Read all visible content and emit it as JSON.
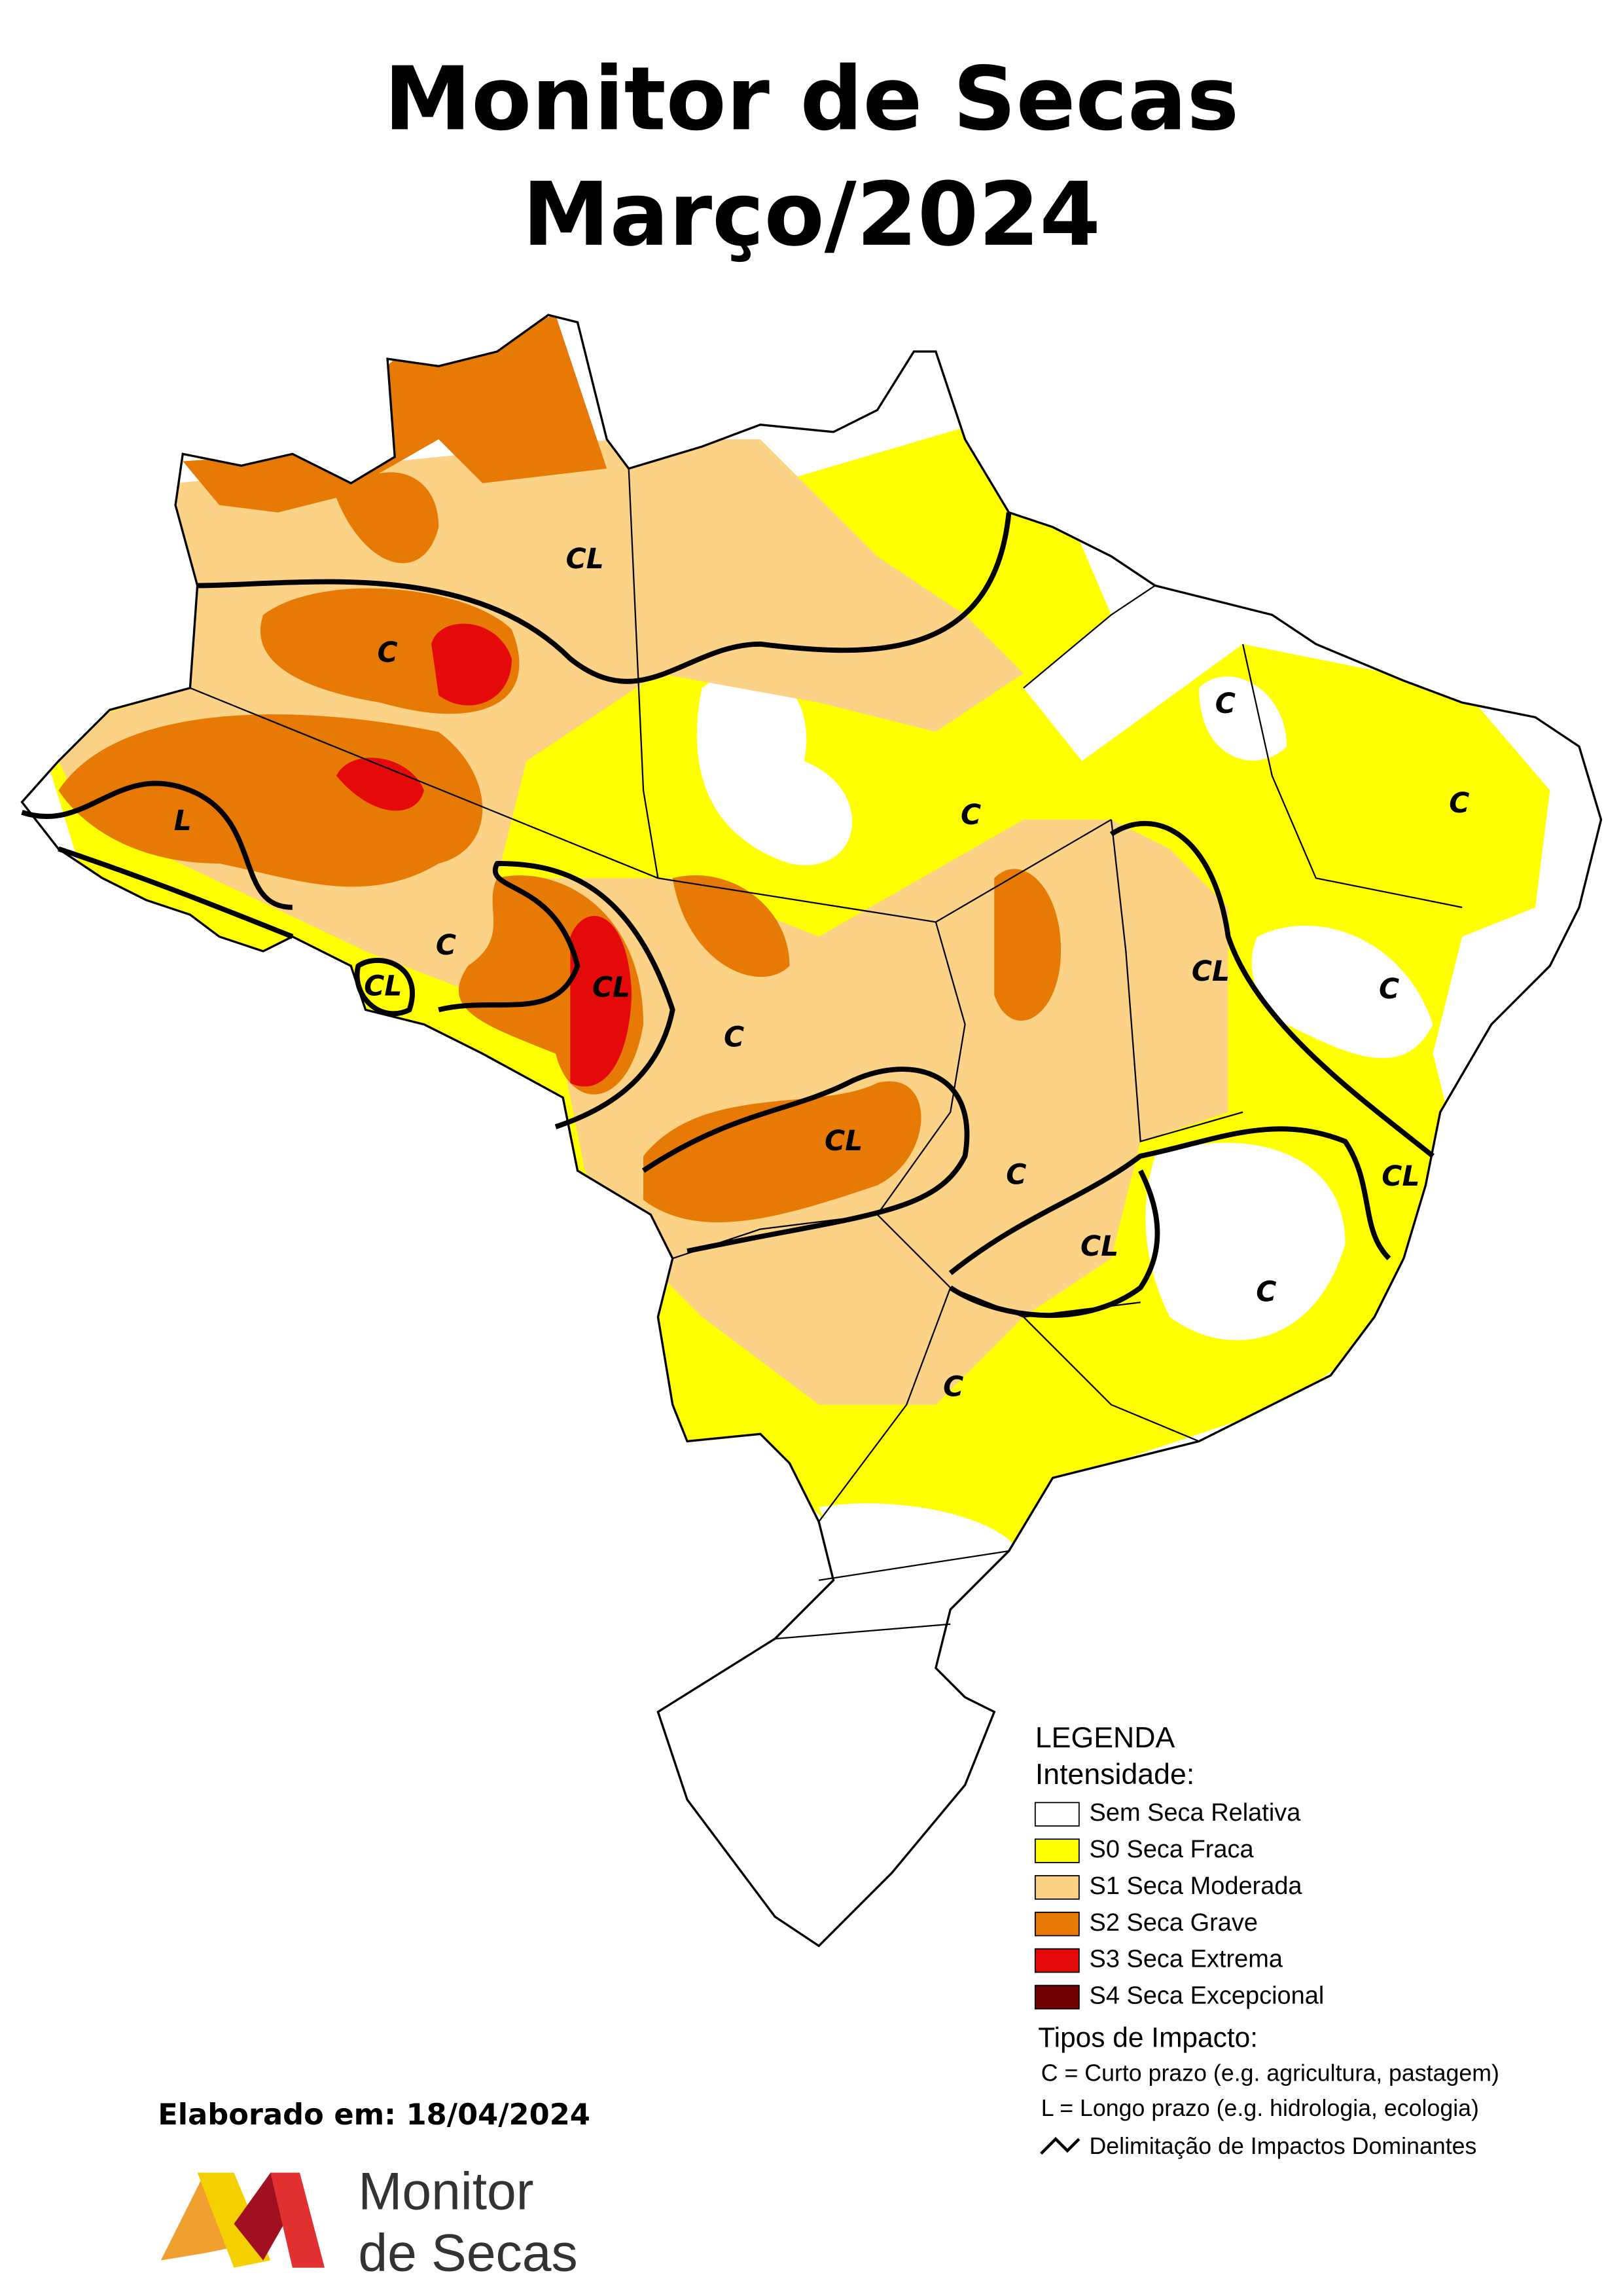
{
  "header": {
    "title_line1": "Monitor de Secas",
    "title_line2": "Março/2024"
  },
  "map": {
    "impact_labels": [
      "CL",
      "C",
      "L",
      "C",
      "CL",
      "CL",
      "C",
      "CL",
      "C",
      "C",
      "C",
      "CL",
      "C",
      "C",
      "CL",
      "CL",
      "C",
      "C"
    ]
  },
  "legend": {
    "title": "LEGENDA",
    "intensity_title": "Intensidade:",
    "intensity_items": [
      {
        "label": "Sem Seca Relativa",
        "color": "#ffffff"
      },
      {
        "label": "S0 Seca Fraca",
        "color": "#ffff00"
      },
      {
        "label": "S1 Seca Moderada",
        "color": "#fcd287"
      },
      {
        "label": "S2 Seca Grave",
        "color": "#e67a05"
      },
      {
        "label": "S3 Seca Extrema",
        "color": "#e50a0a"
      },
      {
        "label": "S4 Seca Excepcional",
        "color": "#730000"
      }
    ],
    "impact_title": "Tipos de Impacto:",
    "impact_items": [
      "C = Curto prazo (e.g. agricultura, pastagem)",
      "L = Longo prazo (e.g. hidrologia, ecologia)"
    ],
    "boundary_item": "Delimitação de Impactos Dominantes"
  },
  "footer": {
    "date": "Elaborado em: 18/04/2024",
    "logo_line1": "Monitor",
    "logo_line2": "de Secas"
  }
}
